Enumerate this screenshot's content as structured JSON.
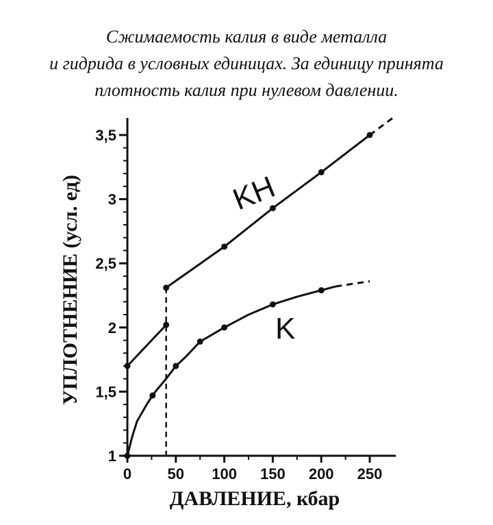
{
  "caption": {
    "lines": [
      "Сжимаемость калия в виде металла",
      "и гидрида в условных единицах. За единицу принята",
      "плотность калия при нулевом давлении."
    ]
  },
  "chart_data": {
    "type": "line",
    "xlabel": "ДАВЛЕНИЕ, кбар",
    "ylabel": "УПЛОТНЕНИЕ (усл. ед)",
    "xlim": [
      0,
      250
    ],
    "ylim": [
      1,
      3.5
    ],
    "x_ticks": [
      0,
      50,
      100,
      150,
      200,
      250
    ],
    "x_tick_labels": [
      "0",
      "50",
      "100",
      "150",
      "200",
      "250"
    ],
    "y_ticks": [
      1,
      1.5,
      2,
      2.5,
      3,
      3.5
    ],
    "y_tick_labels": [
      "1",
      "1,5",
      "2",
      "2,5",
      "3",
      "3,5"
    ],
    "transition_pressure": 40,
    "series": [
      {
        "name": "KH",
        "low_segment": [
          [
            0,
            1.7
          ],
          [
            40,
            2.02
          ]
        ],
        "high_segment": [
          [
            40,
            2.31
          ],
          [
            100,
            2.63
          ],
          [
            150,
            2.93
          ],
          [
            200,
            3.21
          ],
          [
            250,
            3.5
          ]
        ],
        "points": [
          [
            0,
            1.7
          ],
          [
            40,
            2.02
          ],
          [
            40,
            2.31
          ],
          [
            100,
            2.63
          ],
          [
            150,
            2.93
          ],
          [
            200,
            3.21
          ],
          [
            250,
            3.5
          ]
        ],
        "extrapolation": [
          [
            250,
            3.5
          ],
          [
            275,
            3.64
          ]
        ]
      },
      {
        "name": "K",
        "curve": [
          [
            0,
            1.0
          ],
          [
            5,
            1.15
          ],
          [
            10,
            1.27
          ],
          [
            20,
            1.4
          ],
          [
            26,
            1.47
          ],
          [
            30,
            1.51
          ],
          [
            40,
            1.6
          ],
          [
            50,
            1.7
          ],
          [
            60,
            1.77
          ],
          [
            75,
            1.89
          ],
          [
            100,
            2.0
          ],
          [
            125,
            2.1
          ],
          [
            150,
            2.18
          ],
          [
            175,
            2.24
          ],
          [
            200,
            2.29
          ],
          [
            215,
            2.32
          ]
        ],
        "points": [
          [
            0,
            1.0
          ],
          [
            26,
            1.47
          ],
          [
            50,
            1.7
          ],
          [
            75,
            1.89
          ],
          [
            100,
            2.0
          ],
          [
            150,
            2.18
          ],
          [
            200,
            2.29
          ]
        ],
        "extrapolation": [
          [
            215,
            2.32
          ],
          [
            250,
            2.36
          ]
        ]
      }
    ]
  }
}
